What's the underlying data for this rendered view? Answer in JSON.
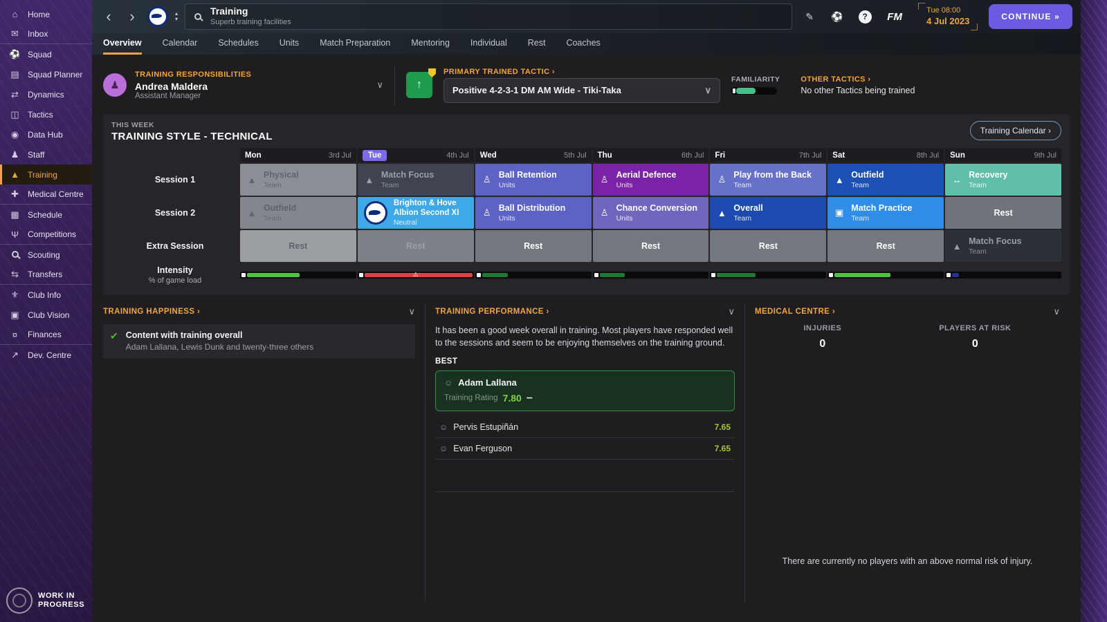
{
  "ui": {
    "chev_right": "›",
    "chev_down": "∨",
    "back": "‹",
    "fwd": "›",
    "up": "▴",
    "down": "▾",
    "pencil": "✎",
    "globe": "⚽",
    "help": "?",
    "continue_arrows": "»",
    "warn": "⚠",
    "thumb": "✔",
    "person": "♟",
    "face": "☺",
    "minus": "–"
  },
  "colors": {
    "accent": "#f0a63c",
    "continue_purple": "#6a5be0",
    "today_badge": "#7a6ae8",
    "rating_green": "#a4c63a"
  },
  "sidebar": {
    "footer_line1": "WORK IN",
    "footer_line2": "PROGRESS",
    "items": [
      {
        "label": "Home",
        "icon": "⌂",
        "cls": ""
      },
      {
        "label": "Inbox",
        "icon": "✉",
        "cls": "div"
      },
      {
        "label": "Squad",
        "icon": "⚽",
        "cls": ""
      },
      {
        "label": "Squad Planner",
        "icon": "▤",
        "cls": ""
      },
      {
        "label": "Dynamics",
        "icon": "⇄",
        "cls": ""
      },
      {
        "label": "Tactics",
        "icon": "◫",
        "cls": ""
      },
      {
        "label": "Data Hub",
        "icon": "◉",
        "cls": ""
      },
      {
        "label": "Staff",
        "icon": "♟",
        "cls": ""
      },
      {
        "label": "Training",
        "icon": "▲",
        "cls": "active"
      },
      {
        "label": "Medical Centre",
        "icon": "✚",
        "cls": "div"
      },
      {
        "label": "Schedule",
        "icon": "▦",
        "cls": ""
      },
      {
        "label": "Competitions",
        "icon": "Ψ",
        "cls": "div"
      },
      {
        "label": "Scouting",
        "icon": "",
        "cls": ""
      },
      {
        "label": "Transfers",
        "icon": "⇆",
        "cls": "div"
      },
      {
        "label": "Club Info",
        "icon": "⚜",
        "cls": ""
      },
      {
        "label": "Club Vision",
        "icon": "▣",
        "cls": ""
      },
      {
        "label": "Finances",
        "icon": "¤",
        "cls": "div"
      },
      {
        "label": "Dev. Centre",
        "icon": "↗",
        "cls": ""
      }
    ]
  },
  "topbar": {
    "title": "Training",
    "subtitle": "Superb training facilities",
    "fm": "FM",
    "time": "Tue 08:00",
    "date": "4 Jul 2023",
    "continue_label": "CONTINUE"
  },
  "tabs": [
    {
      "label": "Overview",
      "cls": "active"
    },
    {
      "label": "Calendar",
      "cls": ""
    },
    {
      "label": "Schedules",
      "cls": ""
    },
    {
      "label": "Units",
      "cls": ""
    },
    {
      "label": "Match Preparation",
      "cls": ""
    },
    {
      "label": "Mentoring",
      "cls": ""
    },
    {
      "label": "Individual",
      "cls": ""
    },
    {
      "label": "Rest",
      "cls": ""
    },
    {
      "label": "Coaches",
      "cls": ""
    }
  ],
  "responsibilities": {
    "label": "TRAINING RESPONSIBILITIES",
    "name": "Andrea Maldera",
    "role": "Assistant Manager"
  },
  "tactic": {
    "label": "PRIMARY TRAINED TACTIC",
    "value": "Positive 4-2-3-1 DM AM Wide - Tiki-Taka",
    "familiarity_label": "FAMILIARITY",
    "familiarity_pct": 42
  },
  "other_tactics": {
    "label": "OTHER TACTICS",
    "value": "No other Tactics being trained"
  },
  "week": {
    "eyebrow": "THIS WEEK",
    "title": "TRAINING STYLE - TECHNICAL",
    "calendar_button": "Training Calendar"
  },
  "grid": {
    "row_labels": {
      "s1": "Session 1",
      "s2": "Session 2",
      "extra": "Extra Session",
      "intensity": "Intensity",
      "intensity_sub": "% of game load"
    },
    "days": [
      {
        "name": "Mon",
        "date": "3rd Jul",
        "cls": ""
      },
      {
        "name": "Tue",
        "date": "4th Jul",
        "cls": "today"
      },
      {
        "name": "Wed",
        "date": "5th Jul",
        "cls": ""
      },
      {
        "name": "Thu",
        "date": "6th Jul",
        "cls": ""
      },
      {
        "name": "Fri",
        "date": "7th Jul",
        "cls": ""
      },
      {
        "name": "Sat",
        "date": "8th Jul",
        "cls": ""
      },
      {
        "name": "Sun",
        "date": "9th Jul",
        "cls": ""
      }
    ],
    "s1": [
      {
        "title": "Physical",
        "subtitle": "Team",
        "icon": "▲",
        "bg": "#8b8f95",
        "cls": "muted-dark"
      },
      {
        "title": "Match Focus",
        "subtitle": "Team",
        "icon": "▲",
        "bg": "#3f4450",
        "cls": "muted-light"
      },
      {
        "title": "Ball Retention",
        "subtitle": "Units",
        "icon": "♙",
        "bg": "#5c63c4",
        "cls": ""
      },
      {
        "title": "Aerial Defence",
        "subtitle": "Units",
        "icon": "♙",
        "bg": "#7a23a8",
        "cls": ""
      },
      {
        "title": "Play from the Back",
        "subtitle": "Team",
        "icon": "♙",
        "bg": "#6672c9",
        "cls": ""
      },
      {
        "title": "Outfield",
        "subtitle": "Team",
        "icon": "▲",
        "bg": "#1c50b4",
        "cls": ""
      },
      {
        "title": "Recovery",
        "subtitle": "Team",
        "icon": "↔",
        "bg": "#5fbfa8",
        "cls": ""
      }
    ],
    "s2": [
      {
        "title": "Outfield",
        "subtitle": "Team",
        "icon": "▲",
        "bg": "#83878d",
        "cls": "muted-dark"
      },
      {
        "title": "Brighton & Hove Albion Second XI",
        "subtitle": "Neutral",
        "icon": "",
        "bg": "#3fa9e8",
        "cls": "badge"
      },
      {
        "title": "Ball Distribution",
        "subtitle": "Units",
        "icon": "♙",
        "bg": "#5c63c4",
        "cls": ""
      },
      {
        "title": "Chance Conversion",
        "subtitle": "Units",
        "icon": "♙",
        "bg": "#6f66be",
        "cls": ""
      },
      {
        "title": "Overall",
        "subtitle": "Team",
        "icon": "▲",
        "bg": "#1c4aae",
        "cls": ""
      },
      {
        "title": "Match Practice",
        "subtitle": "Team",
        "icon": "▣",
        "bg": "#2f8de8",
        "cls": ""
      },
      {
        "title": "Rest",
        "subtitle": "",
        "icon": "",
        "bg": "#70757c",
        "cls": "rest"
      }
    ],
    "ex": [
      {
        "title": "Rest",
        "subtitle": "",
        "icon": "",
        "bg": "#9b9ea3",
        "cls": "rest muted-dark"
      },
      {
        "title": "Rest",
        "subtitle": "",
        "icon": "",
        "bg": "#7e8187",
        "cls": "rest muted-light"
      },
      {
        "title": "Rest",
        "subtitle": "",
        "icon": "",
        "bg": "#73777e",
        "cls": "rest"
      },
      {
        "title": "Rest",
        "subtitle": "",
        "icon": "",
        "bg": "#73777e",
        "cls": "rest"
      },
      {
        "title": "Rest",
        "subtitle": "",
        "icon": "",
        "bg": "#73777e",
        "cls": "rest"
      },
      {
        "title": "Rest",
        "subtitle": "",
        "icon": "",
        "bg": "#73777e",
        "cls": "rest"
      },
      {
        "title": "Match Focus",
        "subtitle": "Team",
        "icon": "▲",
        "bg": "#2c3037",
        "cls": "muted-light"
      }
    ]
  },
  "intensity": {
    "bars": [
      {
        "pct": 45,
        "color": "#4ec43e",
        "warn": ""
      },
      {
        "pct": 95,
        "color": "#d84343",
        "warn": "⚠"
      },
      {
        "pct": 22,
        "color": "#1d7a33",
        "warn": ""
      },
      {
        "pct": 22,
        "color": "#1d7a33",
        "warn": ""
      },
      {
        "pct": 33,
        "color": "#1d7a33",
        "warn": ""
      },
      {
        "pct": 48,
        "color": "#4ec43e",
        "warn": ""
      },
      {
        "pct": 6,
        "color": "#24318f",
        "warn": ""
      }
    ]
  },
  "happiness": {
    "title": "TRAINING HAPPINESS",
    "item_title": "Content with training overall",
    "item_sub": "Adam Lallana, Lewis Dunk and twenty-three others"
  },
  "performance": {
    "title": "TRAINING PERFORMANCE",
    "paragraph": "It has been a good week overall in training. Most players have responded well to the sessions and seem to be enjoying themselves on the training ground.",
    "best_label": "BEST",
    "best": {
      "name": "Adam Lallana",
      "rating_label": "Training Rating",
      "rating": "7.80",
      "trend": "–"
    },
    "others": [
      {
        "name": "Pervis Estupiñán",
        "rating": "7.65"
      },
      {
        "name": "Evan Ferguson",
        "rating": "7.65"
      }
    ]
  },
  "medical": {
    "title": "MEDICAL CENTRE",
    "injuries_label": "INJURIES",
    "injuries": "0",
    "risk_label": "PLAYERS AT RISK",
    "risk": "0",
    "message": "There are currently no players with an above normal risk of injury."
  }
}
